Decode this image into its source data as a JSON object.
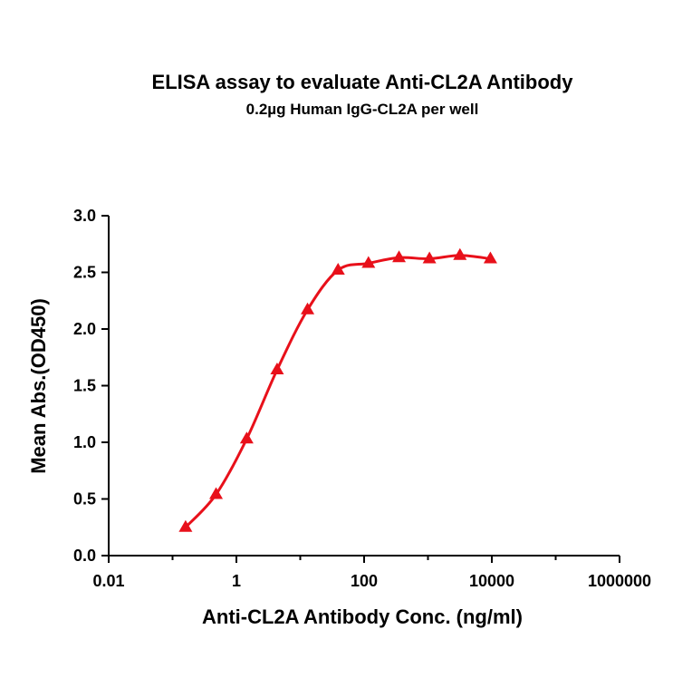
{
  "chart_data": {
    "type": "scatter",
    "title": "ELISA assay to evaluate Anti-CL2A Antibody",
    "subtitle": "0.2µg Human IgG-CL2A per well",
    "xlabel": "Anti-CL2A Antibody Conc. (ng/ml)",
    "ylabel": "Mean Abs.(OD450)",
    "x_scale": "log",
    "xlim": [
      0.01,
      1000000
    ],
    "ylim": [
      0,
      3.0
    ],
    "x_ticks": [
      0.01,
      1,
      100,
      10000,
      1000000
    ],
    "x_tick_labels": [
      "0.01",
      "1",
      "100",
      "10000",
      "1000000"
    ],
    "y_ticks": [
      0,
      0.5,
      1.0,
      1.5,
      2.0,
      2.5,
      3.0
    ],
    "y_tick_labels": [
      "0.0",
      "0.5",
      "1.0",
      "1.5",
      "2.0",
      "2.5",
      "3.0"
    ],
    "grid": false,
    "series": [
      {
        "color": "#e8101a",
        "marker": "triangle",
        "fit": "sigmoidal",
        "x": [
          0.16,
          0.48,
          1.45,
          4.34,
          13.0,
          39.1,
          117,
          352,
          1055,
          3166,
          9500
        ],
        "y": [
          0.25,
          0.54,
          1.03,
          1.64,
          2.17,
          2.52,
          2.58,
          2.63,
          2.62,
          2.65,
          2.62
        ]
      }
    ]
  }
}
